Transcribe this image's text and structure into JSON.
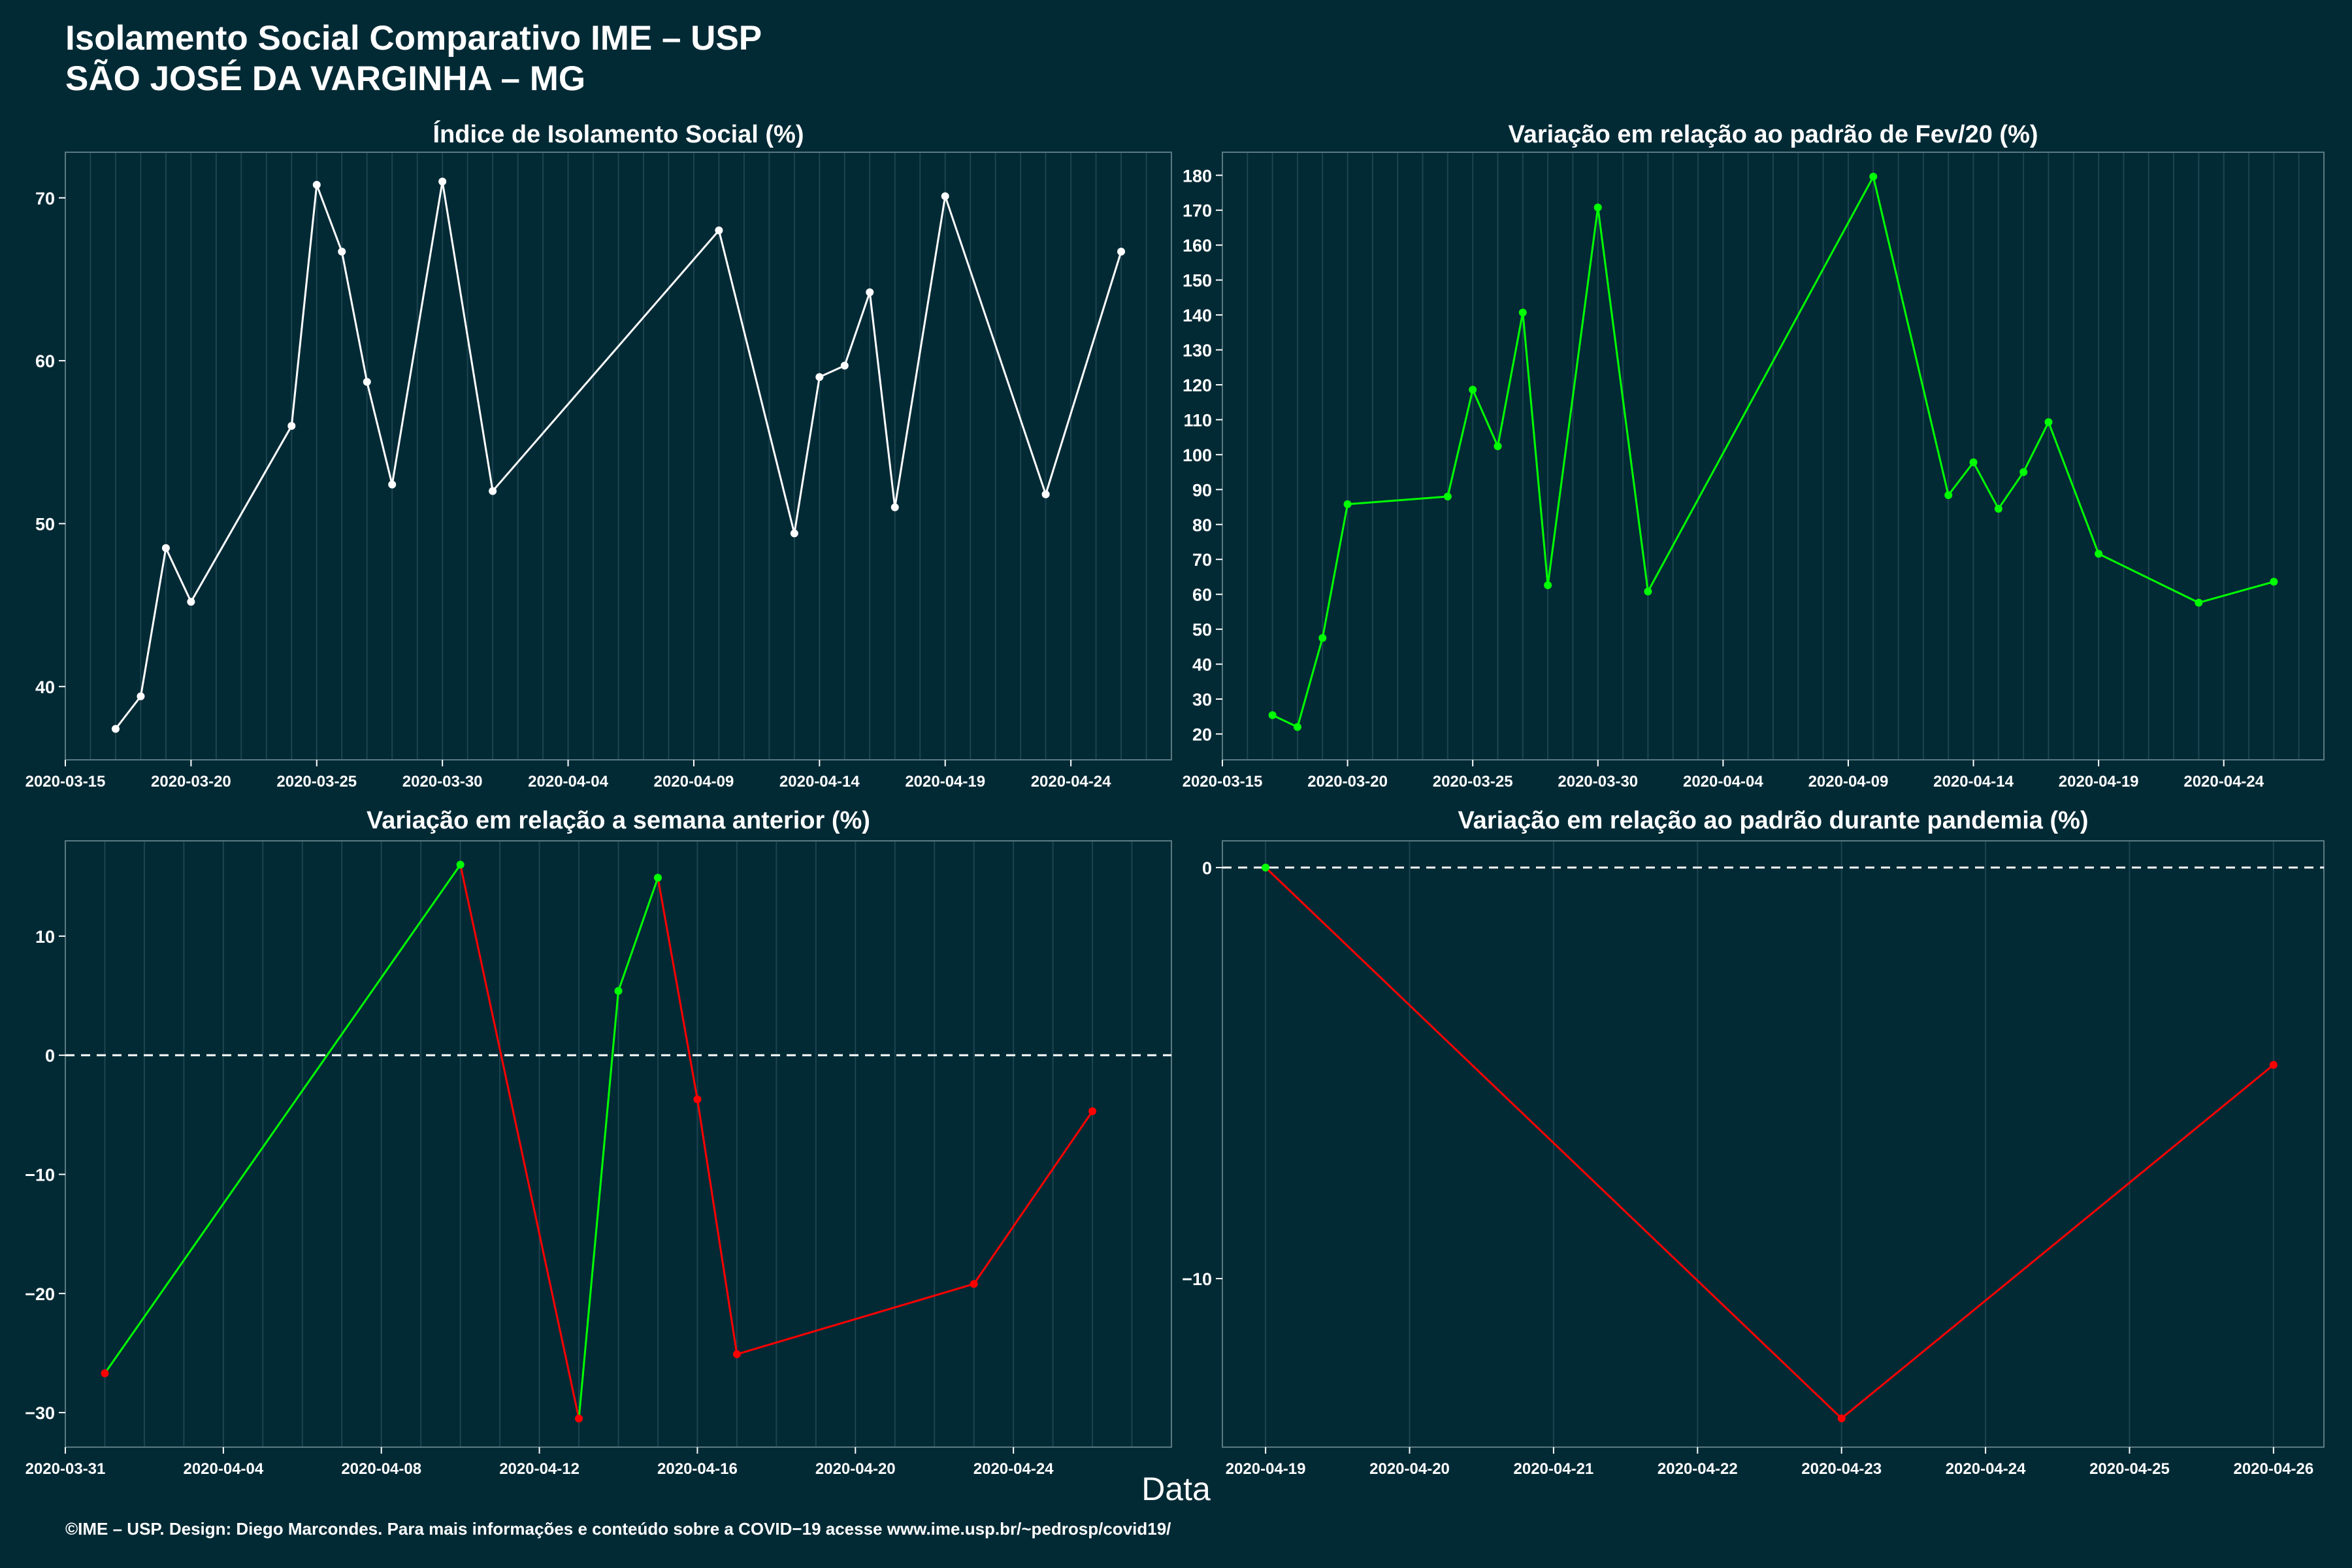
{
  "header": {
    "title_line1": "Isolamento Social Comparativo IME – USP",
    "title_line2": "SÃO JOSÉ DA VARGINHA – MG"
  },
  "x_axis_label": "Data",
  "caption": "©IME – USP. Design: Diego Marcondes. Para mais informações e conteúdo sobre a COVID−19 acesse www.ime.usp.br/~pedrosp/covid19/",
  "colors": {
    "background": "#022a35",
    "line_default": "#ffffff",
    "line_up": "#00ff00",
    "line_down": "#ff0000",
    "grid": "#1d4450"
  },
  "chart_data": [
    {
      "type": "line",
      "title": "Índice de Isolamento Social (%)",
      "x_ticks": [
        "2020-03-15",
        "2020-03-20",
        "2020-03-25",
        "2020-03-30",
        "2020-04-04",
        "2020-04-09",
        "2020-04-14",
        "2020-04-19",
        "2020-04-24"
      ],
      "y_ticks": [
        40,
        50,
        60,
        70
      ],
      "xlim": [
        "2020-03-15",
        "2020-04-28"
      ],
      "ylim": [
        35.5,
        72.8
      ],
      "hline": null,
      "grid": true,
      "points": [
        {
          "x": "2020-03-17",
          "y": 37.4,
          "c": "w"
        },
        {
          "x": "2020-03-18",
          "y": 39.4,
          "c": "w"
        },
        {
          "x": "2020-03-19",
          "y": 48.5,
          "c": "w"
        },
        {
          "x": "2020-03-20",
          "y": 45.2,
          "c": "w"
        },
        {
          "x": "2020-03-24",
          "y": 56.0,
          "c": "w"
        },
        {
          "x": "2020-03-25",
          "y": 70.8,
          "c": "w"
        },
        {
          "x": "2020-03-26",
          "y": 66.7,
          "c": "w"
        },
        {
          "x": "2020-03-27",
          "y": 58.7,
          "c": "w"
        },
        {
          "x": "2020-03-28",
          "y": 52.4,
          "c": "w"
        },
        {
          "x": "2020-03-30",
          "y": 71.0,
          "c": "w"
        },
        {
          "x": "2020-04-01",
          "y": 52.0,
          "c": "w"
        },
        {
          "x": "2020-04-10",
          "y": 68.0,
          "c": "w"
        },
        {
          "x": "2020-04-13",
          "y": 49.4,
          "c": "w"
        },
        {
          "x": "2020-04-14",
          "y": 59.0,
          "c": "w"
        },
        {
          "x": "2020-04-15",
          "y": 59.7,
          "c": "w"
        },
        {
          "x": "2020-04-16",
          "y": 64.2,
          "c": "w"
        },
        {
          "x": "2020-04-17",
          "y": 51.0,
          "c": "w"
        },
        {
          "x": "2020-04-19",
          "y": 70.1,
          "c": "w"
        },
        {
          "x": "2020-04-23",
          "y": 51.8,
          "c": "w"
        },
        {
          "x": "2020-04-26",
          "y": 66.7,
          "c": "w"
        }
      ]
    },
    {
      "type": "line",
      "title": "Variação em relação ao padrão de Fev/20 (%)",
      "x_ticks": [
        "2020-03-15",
        "2020-03-20",
        "2020-03-25",
        "2020-03-30",
        "2020-04-04",
        "2020-04-09",
        "2020-04-14",
        "2020-04-19",
        "2020-04-24"
      ],
      "y_ticks": [
        20,
        30,
        40,
        50,
        60,
        70,
        80,
        90,
        100,
        110,
        120,
        130,
        140,
        150,
        160,
        170,
        180
      ],
      "xlim": [
        "2020-03-15",
        "2020-04-28"
      ],
      "ylim": [
        12.6,
        186.6
      ],
      "hline": null,
      "grid": true,
      "points": [
        {
          "x": "2020-03-17",
          "y": 25.4,
          "c": "g"
        },
        {
          "x": "2020-03-18",
          "y": 22.0,
          "c": "g"
        },
        {
          "x": "2020-03-19",
          "y": 47.5,
          "c": "g"
        },
        {
          "x": "2020-03-20",
          "y": 85.8,
          "c": "g"
        },
        {
          "x": "2020-03-24",
          "y": 88.0,
          "c": "g"
        },
        {
          "x": "2020-03-25",
          "y": 118.6,
          "c": "g"
        },
        {
          "x": "2020-03-26",
          "y": 102.4,
          "c": "g"
        },
        {
          "x": "2020-03-27",
          "y": 140.7,
          "c": "g"
        },
        {
          "x": "2020-03-28",
          "y": 62.6,
          "c": "g"
        },
        {
          "x": "2020-03-30",
          "y": 170.8,
          "c": "g"
        },
        {
          "x": "2020-04-01",
          "y": 60.8,
          "c": "g"
        },
        {
          "x": "2020-04-10",
          "y": 179.6,
          "c": "g"
        },
        {
          "x": "2020-04-13",
          "y": 88.4,
          "c": "g"
        },
        {
          "x": "2020-04-14",
          "y": 97.8,
          "c": "g"
        },
        {
          "x": "2020-04-15",
          "y": 84.5,
          "c": "g"
        },
        {
          "x": "2020-04-16",
          "y": 95.0,
          "c": "g"
        },
        {
          "x": "2020-04-17",
          "y": 109.3,
          "c": "g"
        },
        {
          "x": "2020-04-19",
          "y": 71.6,
          "c": "g"
        },
        {
          "x": "2020-04-23",
          "y": 57.6,
          "c": "g"
        },
        {
          "x": "2020-04-26",
          "y": 63.6,
          "c": "g"
        }
      ]
    },
    {
      "type": "line",
      "title": "Variação em relação a semana anterior (%)",
      "x_ticks": [
        "2020-03-31",
        "2020-04-04",
        "2020-04-08",
        "2020-04-12",
        "2020-04-16",
        "2020-04-20",
        "2020-04-24"
      ],
      "y_ticks": [
        -30,
        -20,
        -10,
        0,
        10
      ],
      "xlim": [
        "2020-03-31",
        "2020-04-28"
      ],
      "ylim": [
        -32.9,
        18.0
      ],
      "hline": 0,
      "grid": true,
      "points": [
        {
          "x": "2020-04-01",
          "y": -26.7,
          "c": "r"
        },
        {
          "x": "2020-04-10",
          "y": 16.0,
          "c": "g"
        },
        {
          "x": "2020-04-13",
          "y": -30.5,
          "c": "r"
        },
        {
          "x": "2020-04-14",
          "y": 5.4,
          "c": "g"
        },
        {
          "x": "2020-04-15",
          "y": 14.9,
          "c": "g"
        },
        {
          "x": "2020-04-16",
          "y": -3.7,
          "c": "r"
        },
        {
          "x": "2020-04-17",
          "y": -25.1,
          "c": "r"
        },
        {
          "x": "2020-04-23",
          "y": -19.2,
          "c": "r"
        },
        {
          "x": "2020-04-26",
          "y": -4.7,
          "c": "r"
        }
      ]
    },
    {
      "type": "line",
      "title": "Variação em relação ao padrão durante pandemia (%)",
      "x_ticks": [
        "2020-04-19",
        "2020-04-20",
        "2020-04-21",
        "2020-04-22",
        "2020-04-23",
        "2020-04-24",
        "2020-04-25",
        "2020-04-26"
      ],
      "y_ticks": [
        -10,
        0
      ],
      "xlim": [
        "2020-04-18.7",
        "2020-04-26.35"
      ],
      "ylim": [
        -14.1,
        0.65
      ],
      "hline": 0,
      "grid": true,
      "points": [
        {
          "x": "2020-04-19",
          "y": 0.0,
          "c": "g"
        },
        {
          "x": "2020-04-23",
          "y": -13.4,
          "c": "r"
        },
        {
          "x": "2020-04-26",
          "y": -4.8,
          "c": "r"
        }
      ]
    }
  ]
}
